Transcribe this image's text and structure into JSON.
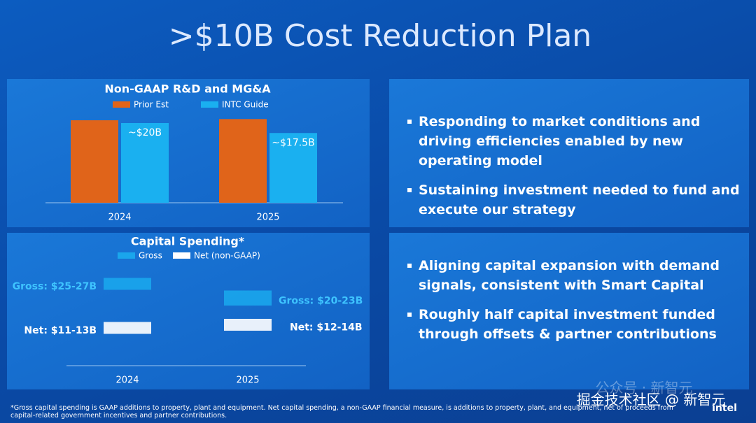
{
  "title": ">$10B Cost Reduction Plan",
  "chart_data": [
    {
      "type": "bar",
      "title": "Non-GAAP R&D and MG&A",
      "categories": [
        "2024",
        "2025"
      ],
      "series": [
        {
          "name": "Prior Est",
          "color": "#e0641a",
          "values": [
            20.7,
            21.0
          ]
        },
        {
          "name": "INTC Guide",
          "color": "#1ab0f0",
          "values": [
            20,
            17.5
          ],
          "value_labels": [
            "~$20B",
            "~$17.5B"
          ]
        }
      ]
    },
    {
      "type": "range-bar",
      "title": "Capital Spending*",
      "categories": [
        "2024",
        "2025"
      ],
      "series": [
        {
          "name": "Gross",
          "color": "#1aa6ec",
          "label_color": "#3ec4ff",
          "values": [
            [
              25,
              27
            ],
            [
              20,
              23
            ]
          ],
          "value_labels": [
            "Gross: $25-27B",
            "Gross: $20-23B"
          ]
        },
        {
          "name": "Net (non-GAAP)",
          "color": "#ffffff",
          "label_color": "#ffffff",
          "values": [
            [
              11,
              13
            ],
            [
              12,
              14
            ]
          ],
          "value_labels": [
            "Net: $11-13B",
            "Net: $12-14B"
          ]
        }
      ]
    }
  ],
  "bullets_top": [
    "Responding to market conditions and driving efficiencies enabled by new operating model",
    "Sustaining investment needed to fund and execute our strategy"
  ],
  "bullets_bottom": [
    "Aligning capital expansion with demand signals, consistent with Smart Capital",
    "Roughly half capital investment funded through offsets & partner contributions"
  ],
  "footnote": "*Gross capital spending is GAAP additions to property, plant and equipment. Net capital spending, a non-GAAP financial measure, is additions to property, plant, and equipment, net of proceeds from capital-related government incentives and partner contributions.",
  "watermark_faint": "公众号 · 新智元",
  "watermark": "掘金技术社区 @ 新智元",
  "logo": "intel"
}
